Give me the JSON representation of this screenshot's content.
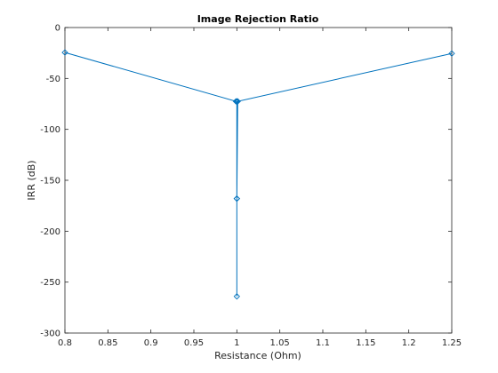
{
  "chart_data": {
    "type": "line",
    "title": "Image Rejection Ratio",
    "xlabel": "Resistance (Ohm)",
    "ylabel": "IRR (dB)",
    "xlim": [
      0.8,
      1.25
    ],
    "ylim": [
      -300,
      0
    ],
    "xticks": [
      0.8,
      0.85,
      0.9,
      0.95,
      1,
      1.05,
      1.1,
      1.15,
      1.2,
      1.25
    ],
    "xtick_labels": [
      "0.8",
      "0.85",
      "0.9",
      "0.95",
      "1",
      "1.05",
      "1.1",
      "1.15",
      "1.2",
      "1.25"
    ],
    "yticks": [
      0,
      -50,
      -100,
      -150,
      -200,
      -250,
      -300
    ],
    "ytick_labels": [
      "0",
      "-50",
      "-100",
      "-150",
      "-200",
      "-250",
      "-300"
    ],
    "grid": false,
    "series": [
      {
        "color": "#0072BD",
        "marker": "diamond",
        "x": [
          0.8,
          0.999,
          1.0,
          1.0,
          1.0,
          1.0,
          1.001,
          1.25
        ],
        "y": [
          -24.5,
          -72.5,
          -72.5,
          -168,
          -264,
          -168,
          -72.5,
          -25.5
        ]
      }
    ]
  }
}
